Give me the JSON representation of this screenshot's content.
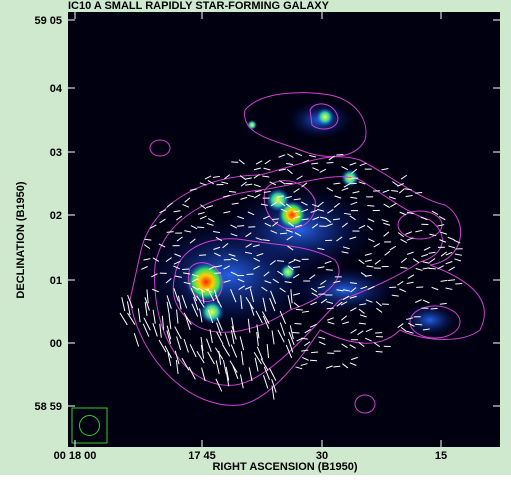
{
  "figure": {
    "title": "IC10 A SMALL RAPIDLY STAR-FORMING GALAXY",
    "x_axis": {
      "label": "RIGHT ASCENSION (B1950)",
      "ticks": [
        "00 18 00",
        "17 45",
        "30",
        "15"
      ]
    },
    "y_axis": {
      "label": "DECLINATION (B1950)",
      "ticks": [
        "59 05",
        "04",
        "03",
        "02",
        "01",
        "00",
        "58 59"
      ]
    }
  }
}
